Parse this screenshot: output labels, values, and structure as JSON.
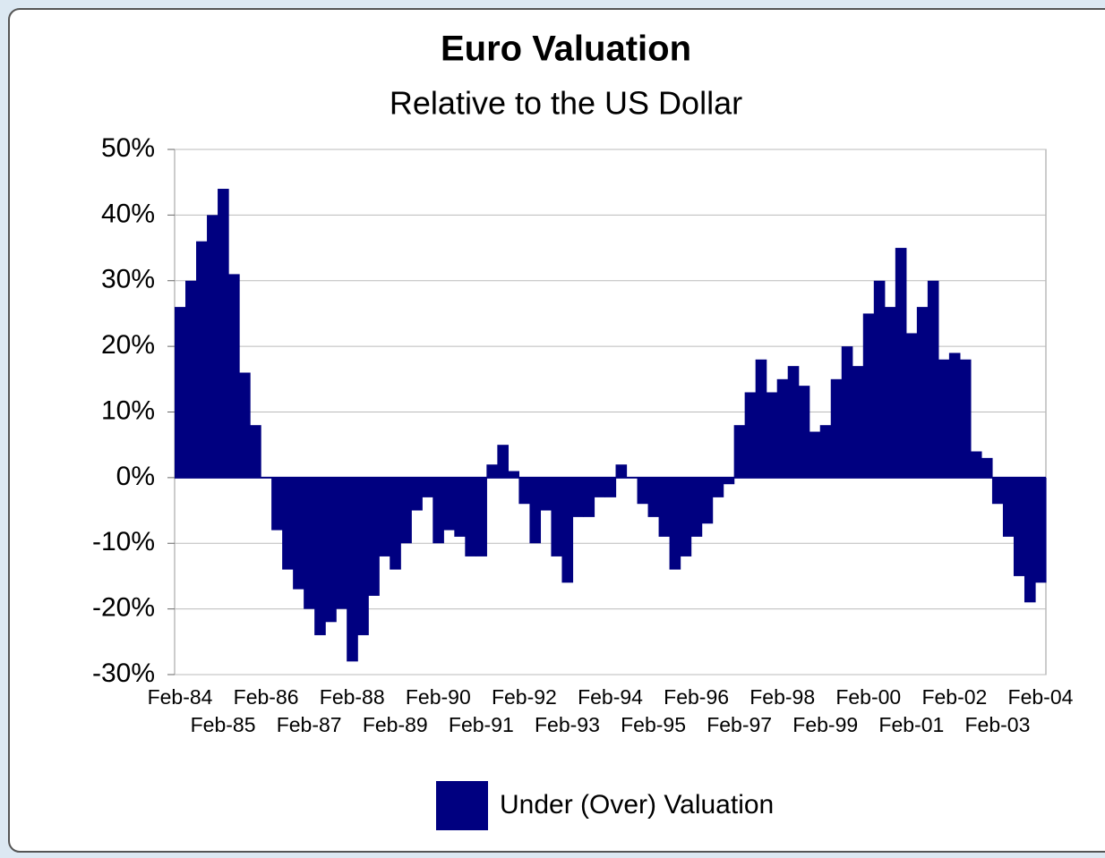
{
  "chart_data": {
    "type": "bar",
    "title": "Euro Valuation",
    "subtitle": "Relative to the US Dollar",
    "categories": [
      "Feb-84",
      null,
      null,
      null,
      "Feb-85",
      null,
      null,
      null,
      "Feb-86",
      null,
      null,
      null,
      "Feb-87",
      null,
      null,
      null,
      "Feb-88",
      null,
      null,
      null,
      "Feb-89",
      null,
      null,
      null,
      "Feb-90",
      null,
      null,
      null,
      "Feb-91",
      null,
      null,
      null,
      "Feb-92",
      null,
      null,
      null,
      "Feb-93",
      null,
      null,
      null,
      "Feb-94",
      null,
      null,
      null,
      "Feb-95",
      null,
      null,
      null,
      "Feb-96",
      null,
      null,
      null,
      "Feb-97",
      null,
      null,
      null,
      "Feb-98",
      null,
      null,
      null,
      "Feb-99",
      null,
      null,
      null,
      "Feb-00",
      null,
      null,
      null,
      "Feb-01",
      null,
      null,
      null,
      "Feb-02",
      null,
      null,
      null,
      "Feb-03",
      null,
      null,
      null,
      "Feb-04"
    ],
    "series": [
      {
        "name": "Under (Over) Valuation",
        "color": "#000080",
        "values": [
          26,
          30,
          36,
          40,
          44,
          31,
          16,
          8,
          0,
          -8,
          -14,
          -17,
          -20,
          -24,
          -22,
          -20,
          -28,
          -24,
          -18,
          -12,
          -14,
          -10,
          -5,
          -3,
          -10,
          -8,
          -9,
          -12,
          -12,
          2,
          5,
          1,
          -4,
          -10,
          -5,
          -12,
          -16,
          -6,
          -6,
          -3,
          -3,
          2,
          0,
          -4,
          -6,
          -9,
          -14,
          -12,
          -9,
          -7,
          -3,
          -1,
          8,
          13,
          18,
          13,
          15,
          17,
          14,
          7,
          8,
          15,
          20,
          17,
          25,
          30,
          26,
          35,
          22,
          26,
          30,
          18,
          19,
          18,
          4,
          3,
          -4,
          -9,
          -15,
          -19,
          -16
        ]
      }
    ],
    "ylim": [
      -30,
      50
    ],
    "yticks": [
      {
        "value": -30,
        "label": "-30%"
      },
      {
        "value": -20,
        "label": "-20%"
      },
      {
        "value": -10,
        "label": "-10%"
      },
      {
        "value": 0,
        "label": "0%"
      },
      {
        "value": 10,
        "label": "10%"
      },
      {
        "value": 20,
        "label": "20%"
      },
      {
        "value": 30,
        "label": "30%"
      },
      {
        "value": 40,
        "label": "40%"
      },
      {
        "value": 50,
        "label": "50%"
      }
    ],
    "grid": true,
    "legend": "bottom"
  }
}
